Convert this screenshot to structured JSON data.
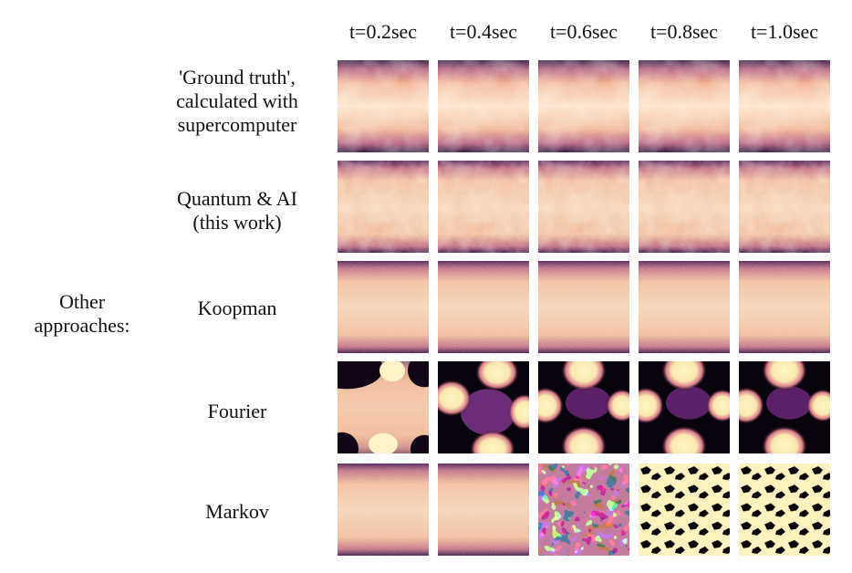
{
  "columns": [
    "t=0.2sec",
    "t=0.4sec",
    "t=0.6sec",
    "t=0.8sec",
    "t=1.0sec"
  ],
  "rows": [
    {
      "label": [
        "'Ground truth',",
        "calculated with",
        "supercomputer"
      ],
      "pattern": [
        "smoke",
        "smoke",
        "smoke",
        "smoke",
        "smoke"
      ]
    },
    {
      "label": [
        "Quantum & AI",
        "(this work)"
      ],
      "pattern": [
        "noisy",
        "noisy",
        "noisy",
        "noisy",
        "noisy"
      ]
    },
    {
      "label": [
        "Koopman"
      ],
      "pattern": [
        "grain",
        "grain",
        "grain",
        "grain",
        "grain"
      ]
    },
    {
      "label": [
        "Fourier"
      ],
      "pattern": [
        "fourier-a",
        "fourier-b",
        "fourier-c",
        "fourier-c",
        "fourier-c"
      ]
    },
    {
      "label": [
        "Markov"
      ],
      "pattern": [
        "grain",
        "grain",
        "markov-blotch",
        "markov-grid",
        "markov-grid"
      ]
    }
  ],
  "group_label": [
    "Other",
    "approaches:"
  ],
  "colormap": {
    "dark": "#1a0a2e",
    "mid": "#7b2d6e",
    "warm": "#e8a07f",
    "light": "#fcdcc2",
    "bright": "#fdf3c3"
  }
}
